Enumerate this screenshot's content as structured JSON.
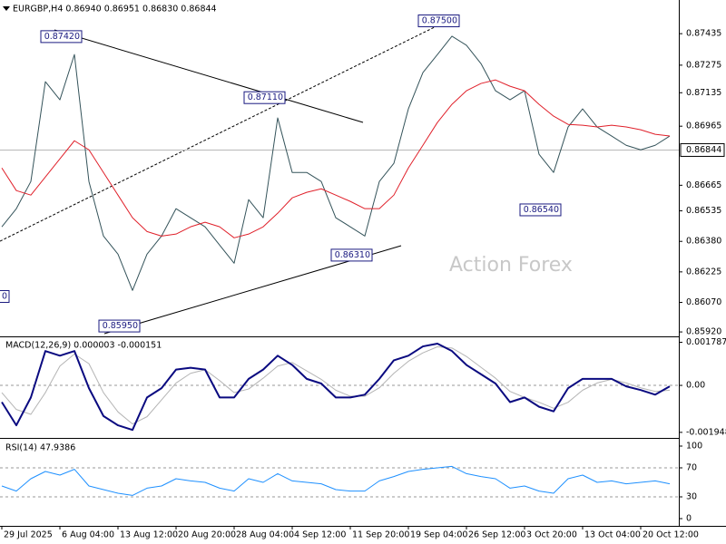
{
  "chart_data": [
    {
      "type": "line",
      "title": "EURGBP,H4  0.86940 0.86951 0.86830 0.86844",
      "watermark": "Action Forex",
      "x": [
        0,
        1,
        2,
        3,
        4,
        5,
        6,
        7,
        8,
        9,
        10,
        11,
        12,
        13,
        14,
        15,
        16,
        17,
        18,
        19,
        20,
        21,
        22,
        23,
        24,
        25,
        26,
        27,
        28,
        29,
        30,
        31,
        32,
        33,
        34,
        35,
        36,
        37,
        38,
        39,
        40,
        41,
        42,
        43,
        44,
        45,
        46
      ],
      "xlim": [
        -0.125,
        46.625
      ],
      "ylim": [
        0.85902,
        0.87606
      ],
      "yticks": [
        0.87435,
        0.87275,
        0.87135,
        0.86965,
        0.86665,
        0.86535,
        {
          "value": 0.8638,
          "label": "0.86380"
        },
        0.86225,
        {
          "value": 0.8607,
          "label": "0.86070"
        },
        {
          "value": 0.8592,
          "label": "0.85920"
        }
      ],
      "last_price": 0.86844,
      "series": [
        {
          "color": "#34535a",
          "values": [
            0.86454,
            0.86546,
            0.86684,
            0.87191,
            0.87099,
            0.87329,
            0.86684,
            0.86407,
            0.86315,
            0.86131,
            0.86315,
            0.86407,
            0.86546,
            0.865,
            0.86454,
            0.86361,
            0.86269,
            0.86592,
            0.865,
            0.87007,
            0.8673,
            0.8673,
            0.86684,
            0.865,
            0.86454,
            0.86407,
            0.86684,
            0.86776,
            0.87053,
            0.87237,
            0.87329,
            0.87422,
            0.87376,
            0.87283,
            0.87145,
            0.87099,
            0.87145,
            0.86822,
            0.8673,
            0.86961,
            0.87053,
            0.86961,
            0.86915,
            0.86868,
            0.86845,
            0.86868,
            0.86915
          ]
        },
        {
          "color": "#e0202a",
          "values": [
            0.86753,
            0.86638,
            0.86615,
            0.86707,
            0.86799,
            0.86891,
            0.86845,
            0.8673,
            0.86615,
            0.865,
            0.8643,
            0.86407,
            0.86417,
            0.86454,
            0.86477,
            0.86454,
            0.86398,
            0.86417,
            0.86454,
            0.86523,
            0.86601,
            0.86629,
            0.86647,
            0.86615,
            0.86583,
            0.86546,
            0.86546,
            0.86615,
            0.86753,
            0.86868,
            0.86984,
            0.87076,
            0.87145,
            0.87182,
            0.872,
            0.87168,
            0.87145,
            0.87076,
            0.87016,
            0.86974,
            0.8697,
            0.86961,
            0.8697,
            0.86961,
            0.86947,
            0.86924,
            0.86915
          ]
        }
      ],
      "annotations": [
        {
          "label": "0.87420",
          "x": 5,
          "y": 0.8742
        },
        {
          "label": "0.87110",
          "x": 19,
          "y": 0.8711
        },
        {
          "label": "0.87500",
          "x": 31,
          "y": 0.875
        },
        {
          "label": "0.86540",
          "x": 38,
          "y": 0.8654
        },
        {
          "label": "0.86310",
          "x": 25,
          "y": 0.8631
        },
        {
          "label": "0.85950",
          "x": 9,
          "y": 0.8595
        },
        {
          "label": "0",
          "x": 0,
          "y": 0.861
        }
      ]
    },
    {
      "type": "line",
      "title": "MACD(12,26,9) 0.000003 -0.000151",
      "x": [
        0,
        1,
        2,
        3,
        4,
        5,
        6,
        7,
        8,
        9,
        10,
        11,
        12,
        13,
        14,
        15,
        16,
        17,
        18,
        19,
        20,
        21,
        22,
        23,
        24,
        25,
        26,
        27,
        28,
        29,
        30,
        31,
        32,
        33,
        34,
        35,
        36,
        37,
        38,
        39,
        40,
        41,
        42,
        43,
        44,
        45,
        46
      ],
      "xlim": [
        -0.125,
        46.625
      ],
      "ylim": [
        -0.002141,
        0.001995
      ],
      "yticks": [
        0.001787,
        {
          "value": 0,
          "label": "0.00"
        },
        -0.001948
      ],
      "levels": [
        0
      ],
      "series": [
        {
          "color": "#b4b4b4",
          "values": [
            -0.0003,
            -0.001,
            -0.0012,
            -0.0003,
            0.0008,
            0.0013,
            0.0009,
            -0.0003,
            -0.0011,
            -0.0016,
            -0.0013,
            -0.0006,
            0.0001,
            0.0005,
            0.00065,
            0.0002,
            -0.0003,
            -0.00015,
            0.0003,
            0.0008,
            0.00095,
            0.0006,
            0.00025,
            -0.0002,
            -0.00045,
            -0.00045,
            -0.0001,
            0.0005,
            0.001,
            0.00135,
            0.0016,
            0.00155,
            0.0012,
            0.00075,
            0.0003,
            -0.00025,
            -0.0005,
            -0.0007,
            -0.00095,
            -0.0007,
            -0.0002,
            0.0001,
            0.00025,
            0.0001,
            -0.0001,
            -0.00025,
            -0.0002
          ]
        },
        {
          "color": "#0a0a80",
          "values": [
            -0.000693,
            -0.001656,
            -0.000501,
            0.001425,
            0.001232,
            0.001425,
            -0.000116,
            -0.001271,
            -0.001656,
            -0.001848,
            -0.000501,
            -0.000116,
            0.000655,
            0.000732,
            0.000655,
            -0.000501,
            -0.000501,
            0.00027,
            0.000655,
            0.001232,
            0.000847,
            0.00027,
            7.7e-05,
            -0.000501,
            -0.000501,
            -0.000385,
            0.00027,
            0.00104,
            0.001232,
            0.001617,
            0.001733,
            0.001425,
            0.000847,
            0.000462,
            7.7e-05,
            -0.000693,
            -0.000501,
            -0.000886,
            -0.001078,
            -0.000116,
            0.00027,
            0.00027,
            0.00027,
            -3.9e-05,
            -0.000193,
            -0.000385,
            -3.9e-05
          ]
        }
      ]
    },
    {
      "type": "line",
      "title": "RSI(14) 47.9386",
      "x": [
        0,
        1,
        2,
        3,
        4,
        5,
        6,
        7,
        8,
        9,
        10,
        11,
        12,
        13,
        14,
        15,
        16,
        17,
        18,
        19,
        20,
        21,
        22,
        23,
        24,
        25,
        26,
        27,
        28,
        29,
        30,
        31,
        32,
        33,
        34,
        35,
        36,
        37,
        38,
        39,
        40,
        41,
        42,
        43,
        44,
        45,
        46
      ],
      "xlim": [
        -0.125,
        46.625
      ],
      "ylim": [
        -10,
        108.75
      ],
      "yticks": [
        100,
        70,
        30,
        0
      ],
      "levels": [
        70,
        30
      ],
      "xticks": [
        {
          "value": 0,
          "label": "29 Jul 2025"
        },
        {
          "value": 4,
          "label": "6 Aug 04:00"
        },
        {
          "value": 8,
          "label": "13 Aug 12:00"
        },
        {
          "value": 12,
          "label": "20 Aug 20:00"
        },
        {
          "value": 16,
          "label": "28 Aug 04:00"
        },
        {
          "value": 20,
          "label": "4 Sep 12:00"
        },
        {
          "value": 24,
          "label": "11 Sep 20:00"
        },
        {
          "value": 28,
          "label": "19 Sep 04:00"
        },
        {
          "value": 32,
          "label": "26 Sep 12:00"
        },
        {
          "value": 36,
          "label": "3 Oct 20:00"
        },
        {
          "value": 40,
          "label": "13 Oct 04:00"
        },
        {
          "value": 44,
          "label": "20 Oct 12:00"
        }
      ],
      "series": [
        {
          "color": "#1e90ff",
          "values": [
            45,
            38,
            55,
            65,
            60,
            68,
            45,
            40,
            35,
            32,
            42,
            45,
            55,
            52,
            50,
            42,
            38,
            55,
            50,
            62,
            52,
            50,
            48,
            40,
            38,
            38,
            52,
            58,
            65,
            68,
            70,
            72,
            62,
            58,
            55,
            42,
            45,
            38,
            35,
            55,
            60,
            50,
            52,
            48,
            50,
            52,
            48
          ]
        }
      ]
    }
  ]
}
